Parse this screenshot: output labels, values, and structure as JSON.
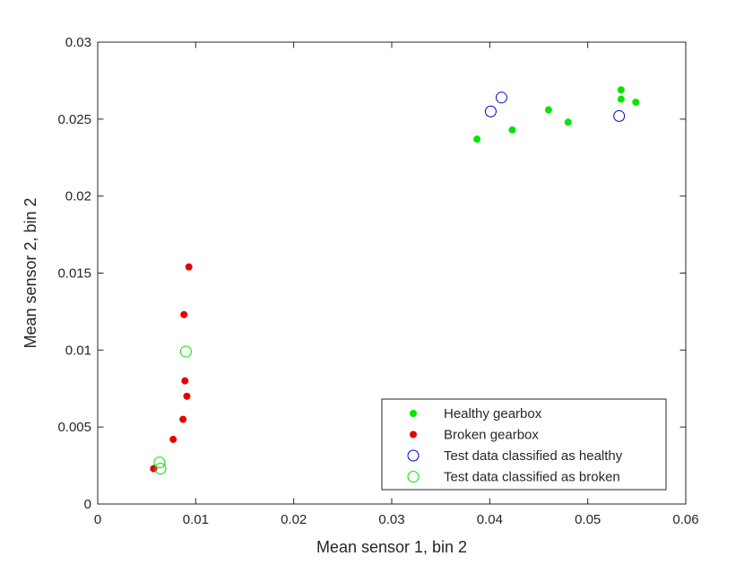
{
  "chart_data": {
    "type": "scatter",
    "xlabel": "Mean sensor 1, bin 2",
    "ylabel": "Mean sensor 2, bin 2",
    "xlim": [
      0,
      0.06
    ],
    "ylim": [
      0,
      0.03
    ],
    "x_ticks": [
      "0",
      "0.01",
      "0.02",
      "0.03",
      "0.04",
      "0.05",
      "0.06"
    ],
    "y_ticks": [
      "0",
      "0.005",
      "0.01",
      "0.015",
      "0.02",
      "0.025",
      "0.03"
    ],
    "grid": false,
    "legend_position": "bottom-right",
    "series": [
      {
        "name": "Healthy gearbox",
        "marker": "filled-dot",
        "color": "#00e600",
        "points": [
          [
            0.0387,
            0.0237
          ],
          [
            0.0423,
            0.0243
          ],
          [
            0.046,
            0.0256
          ],
          [
            0.048,
            0.0248
          ],
          [
            0.0534,
            0.0269
          ],
          [
            0.0534,
            0.0263
          ],
          [
            0.0549,
            0.0261
          ]
        ]
      },
      {
        "name": "Broken gearbox",
        "marker": "filled-dot",
        "color": "#e60000",
        "points": [
          [
            0.0057,
            0.0023
          ],
          [
            0.0077,
            0.0042
          ],
          [
            0.0087,
            0.0055
          ],
          [
            0.0089,
            0.008
          ],
          [
            0.0091,
            0.007
          ],
          [
            0.0088,
            0.0123
          ],
          [
            0.0093,
            0.0154
          ]
        ]
      },
      {
        "name": "Test data classified as healthy",
        "marker": "open-circle",
        "color": "#0000cc",
        "points": [
          [
            0.0401,
            0.0255
          ],
          [
            0.0412,
            0.0264
          ],
          [
            0.0532,
            0.0252
          ]
        ]
      },
      {
        "name": "Test data classified as broken",
        "marker": "open-circle",
        "color": "#00e600",
        "points": [
          [
            0.009,
            0.0099
          ],
          [
            0.0063,
            0.0027
          ],
          [
            0.0064,
            0.0023
          ]
        ]
      }
    ]
  }
}
